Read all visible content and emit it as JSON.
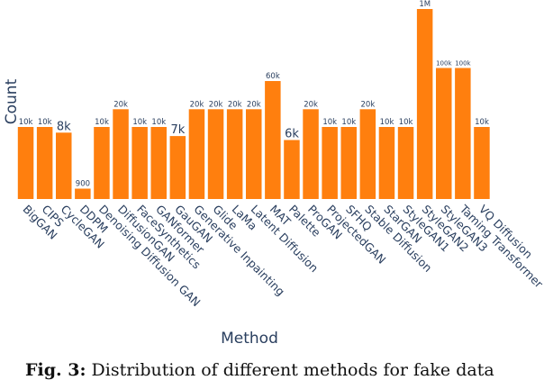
{
  "chart_data": {
    "type": "bar",
    "title": "",
    "xlabel": "Method",
    "ylabel": "Count",
    "bar_color": "#ff7f0e",
    "categories": [
      "BigGAN",
      "CIPS",
      "CycleGAN",
      "DDPM",
      "Denoising Diffusion GAN",
      "DiffusionGAN",
      "FaceSynthetics",
      "GANformer",
      "GauGAN",
      "Generative Inpainting",
      "Glide",
      "LaMa",
      "Latent Diffusion",
      "MAT",
      "Palette",
      "ProGAN",
      "ProjectedGAN",
      "SFHQ",
      "Stable Diffusion",
      "StarGAN",
      "StyleGAN1",
      "StyleGAN2",
      "StyleGAN3",
      "Taming Transformer",
      "VQ Diffusion"
    ],
    "values": [
      10000,
      10000,
      8000,
      900,
      10000,
      20000,
      10000,
      10000,
      7000,
      20000,
      20000,
      20000,
      20000,
      60000,
      6000,
      20000,
      10000,
      10000,
      20000,
      10000,
      10000,
      1000000,
      100000,
      100000,
      10000
    ],
    "value_labels": [
      "10k",
      "10k",
      "8k",
      "900",
      "10k",
      "20k",
      "10k",
      "10k",
      "7k",
      "20k",
      "20k",
      "20k",
      "20k",
      "60k",
      "6k",
      "20k",
      "10k",
      "10k",
      "20k",
      "10k",
      "10k",
      "1M",
      "100k",
      "100k",
      "10k"
    ],
    "label_sizes": [
      "s",
      "s",
      "l",
      "s",
      "s",
      "s",
      "s",
      "s",
      "l",
      "s",
      "s",
      "s",
      "s",
      "s",
      "l",
      "s",
      "s",
      "s",
      "s",
      "s",
      "s",
      "s",
      "xs",
      "xs",
      "s"
    ],
    "yscale": "log",
    "ylim": [
      600,
      1000000
    ],
    "grid": false,
    "legend": "none"
  },
  "caption": {
    "fig_label": "Fig. 3:",
    "text": "Distribution of different methods for fake data"
  }
}
